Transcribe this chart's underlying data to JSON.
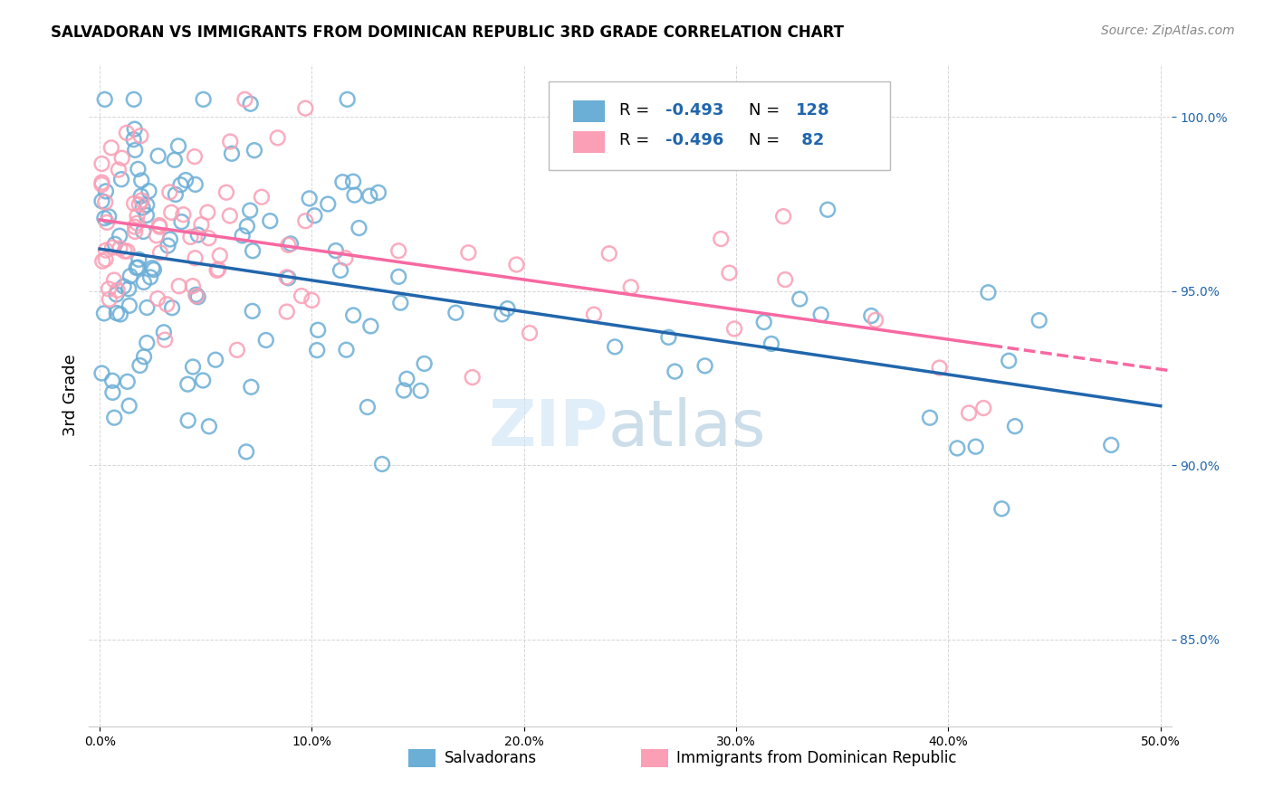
{
  "title": "SALVADORAN VS IMMIGRANTS FROM DOMINICAN REPUBLIC 3RD GRADE CORRELATION CHART",
  "source": "Source: ZipAtlas.com",
  "ylabel": "3rd Grade",
  "blue_color": "#6baed6",
  "pink_color": "#fa9fb5",
  "blue_line_color": "#2166ac",
  "pink_line_color": "#f768a1",
  "background_color": "#ffffff",
  "xlim": [
    -0.005,
    0.505
  ],
  "ylim": [
    0.825,
    1.015
  ],
  "legend_r1": "-0.493",
  "legend_n1": "128",
  "legend_r2": "-0.496",
  "legend_n2": " 82",
  "ytick_values": [
    0.85,
    0.9,
    0.95,
    1.0
  ],
  "xtick_values": [
    0.0,
    0.1,
    0.2,
    0.3,
    0.4,
    0.5
  ]
}
